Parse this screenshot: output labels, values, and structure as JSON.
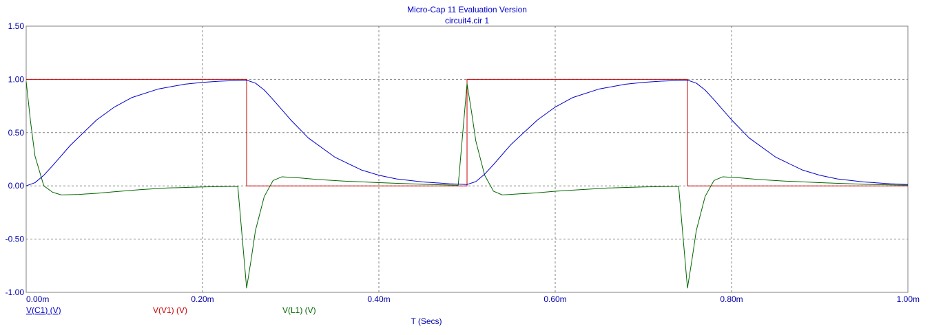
{
  "header": {
    "title": "Micro-Cap 11 Evaluation Version",
    "subtitle": "circuit4.cir 1"
  },
  "colors": {
    "title": "#0000cc",
    "axis_text": "#0000aa",
    "grid": "#808080",
    "frame": "#808080"
  },
  "chart_data": {
    "type": "line",
    "title": "Micro-Cap 11 Evaluation Version",
    "subtitle": "circuit4.cir 1",
    "xlabel": "T (Secs)",
    "ylabel": "",
    "xlim": [
      0,
      0.001
    ],
    "ylim": [
      -1.0,
      1.5
    ],
    "x_ticks": [
      0,
      0.0002,
      0.0004,
      0.0006,
      0.0008,
      0.001
    ],
    "x_tick_labels": [
      "0.00m",
      "0.20m",
      "0.40m",
      "0.60m",
      "0.80m",
      "1.00m"
    ],
    "y_ticks": [
      1.5,
      1.0,
      0.5,
      0.0,
      -0.5,
      -1.0
    ],
    "y_tick_labels": [
      "1.50",
      "1.00",
      "0.50",
      "0.00",
      "-0.50",
      "-1.00"
    ],
    "grid": true,
    "legend_position": "bottom-left",
    "series": [
      {
        "name": "V(C1) (V)",
        "color": "#0000cc",
        "x": [
          0,
          1e-05,
          2e-05,
          3e-05,
          5e-05,
          8e-05,
          0.0001,
          0.00012,
          0.00015,
          0.00018,
          0.0002,
          0.00022,
          0.00025,
          0.00026,
          0.00027,
          0.00028,
          0.0003,
          0.00032,
          0.00035,
          0.00038,
          0.0004,
          0.00042,
          0.00045,
          0.00048,
          0.0005,
          0.00051,
          0.00052,
          0.00053,
          0.00055,
          0.00058,
          0.0006,
          0.00062,
          0.00065,
          0.00068,
          0.0007,
          0.00072,
          0.00075,
          0.00076,
          0.00077,
          0.00078,
          0.0008,
          0.00082,
          0.00085,
          0.00088,
          0.0009,
          0.00092,
          0.00095,
          0.00098,
          0.001
        ],
        "values": [
          0.0,
          0.03,
          0.1,
          0.19,
          0.38,
          0.62,
          0.74,
          0.83,
          0.91,
          0.955,
          0.972,
          0.983,
          0.993,
          0.965,
          0.9,
          0.81,
          0.62,
          0.45,
          0.27,
          0.15,
          0.1,
          0.065,
          0.037,
          0.02,
          0.013,
          0.04,
          0.11,
          0.2,
          0.39,
          0.62,
          0.74,
          0.83,
          0.91,
          0.955,
          0.972,
          0.983,
          0.993,
          0.965,
          0.9,
          0.81,
          0.62,
          0.45,
          0.27,
          0.15,
          0.1,
          0.065,
          0.037,
          0.02,
          0.013
        ]
      },
      {
        "name": "V(V1) (V)",
        "color": "#cc0000",
        "x": [
          0,
          0.00025,
          0.00025,
          0.0005,
          0.0005,
          0.00075,
          0.00075,
          0.001
        ],
        "values": [
          1,
          1,
          0,
          0,
          1,
          1,
          0,
          0
        ]
      },
      {
        "name": "V(L1) (V)",
        "color": "#006600",
        "x": [
          0,
          5e-06,
          1e-05,
          2e-05,
          3e-05,
          4e-05,
          6e-05,
          8e-05,
          0.0001,
          0.00013,
          0.00016,
          0.0002,
          0.00024,
          0.00025,
          0.000255,
          0.00026,
          0.00027,
          0.00028,
          0.00029,
          0.00031,
          0.00033,
          0.00036,
          0.0004,
          0.00045,
          0.00049,
          0.0005,
          0.000505,
          0.00051,
          0.00052,
          0.00053,
          0.00054,
          0.00056,
          0.00058,
          0.0006,
          0.00063,
          0.00066,
          0.0007,
          0.00074,
          0.00075,
          0.000755,
          0.00076,
          0.00077,
          0.00078,
          0.00079,
          0.00081,
          0.00083,
          0.00086,
          0.0009,
          0.00095,
          0.001
        ],
        "values": [
          0.98,
          0.6,
          0.28,
          0.0,
          -0.06,
          -0.085,
          -0.08,
          -0.07,
          -0.055,
          -0.035,
          -0.02,
          -0.01,
          -0.004,
          -0.96,
          -0.7,
          -0.42,
          -0.1,
          0.05,
          0.085,
          0.075,
          0.06,
          0.045,
          0.03,
          0.015,
          0.006,
          0.96,
          0.7,
          0.42,
          0.1,
          -0.05,
          -0.085,
          -0.075,
          -0.065,
          -0.05,
          -0.035,
          -0.02,
          -0.01,
          -0.004,
          -0.96,
          -0.7,
          -0.42,
          -0.1,
          0.05,
          0.085,
          0.075,
          0.06,
          0.045,
          0.03,
          0.015,
          0.006
        ]
      }
    ]
  }
}
